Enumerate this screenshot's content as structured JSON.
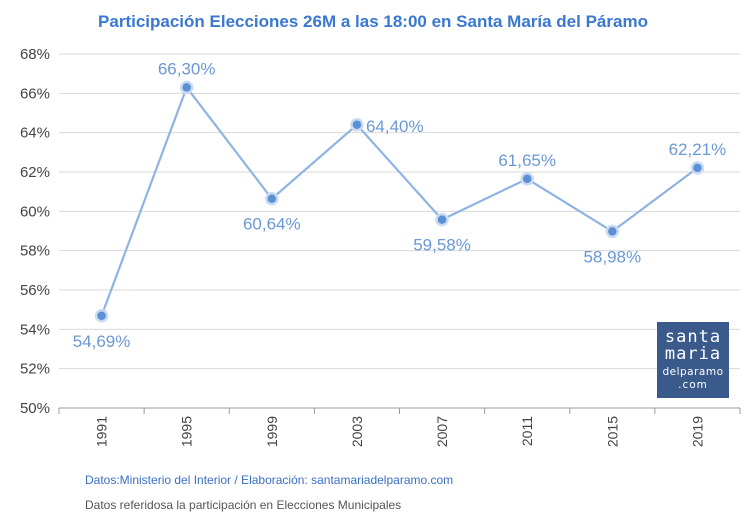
{
  "chart_data": {
    "type": "line",
    "title": "Participación Elecciones 26M a las 18:00 en Santa María del Páramo",
    "categories": [
      "1991",
      "1995",
      "1999",
      "2003",
      "2007",
      "2011",
      "2015",
      "2019"
    ],
    "series": [
      {
        "values": [
          54.69,
          66.3,
          60.64,
          64.4,
          59.58,
          61.65,
          58.98,
          62.21
        ],
        "labels": [
          "54,69%",
          "66,30%",
          "60,64%",
          "64,40%",
          "59,58%",
          "61,65%",
          "58,98%",
          "62,21%"
        ],
        "color": "#8fb3e3"
      }
    ],
    "ylim": [
      50,
      68
    ],
    "yticks": [
      "50%",
      "52%",
      "54%",
      "56%",
      "58%",
      "60%",
      "62%",
      "64%",
      "66%",
      "68%"
    ],
    "grid": true,
    "marker_color": "#5b8fd6"
  },
  "footer": {
    "source": "Datos:Ministerio del Interior / Elaboración: santamariadelparamo.com",
    "note": "Datos referidosa la participación en Elecciones Municipales"
  },
  "logo": {
    "line1": "santa",
    "line2": "maria",
    "line3": "delparamo",
    "line4": ".com"
  }
}
